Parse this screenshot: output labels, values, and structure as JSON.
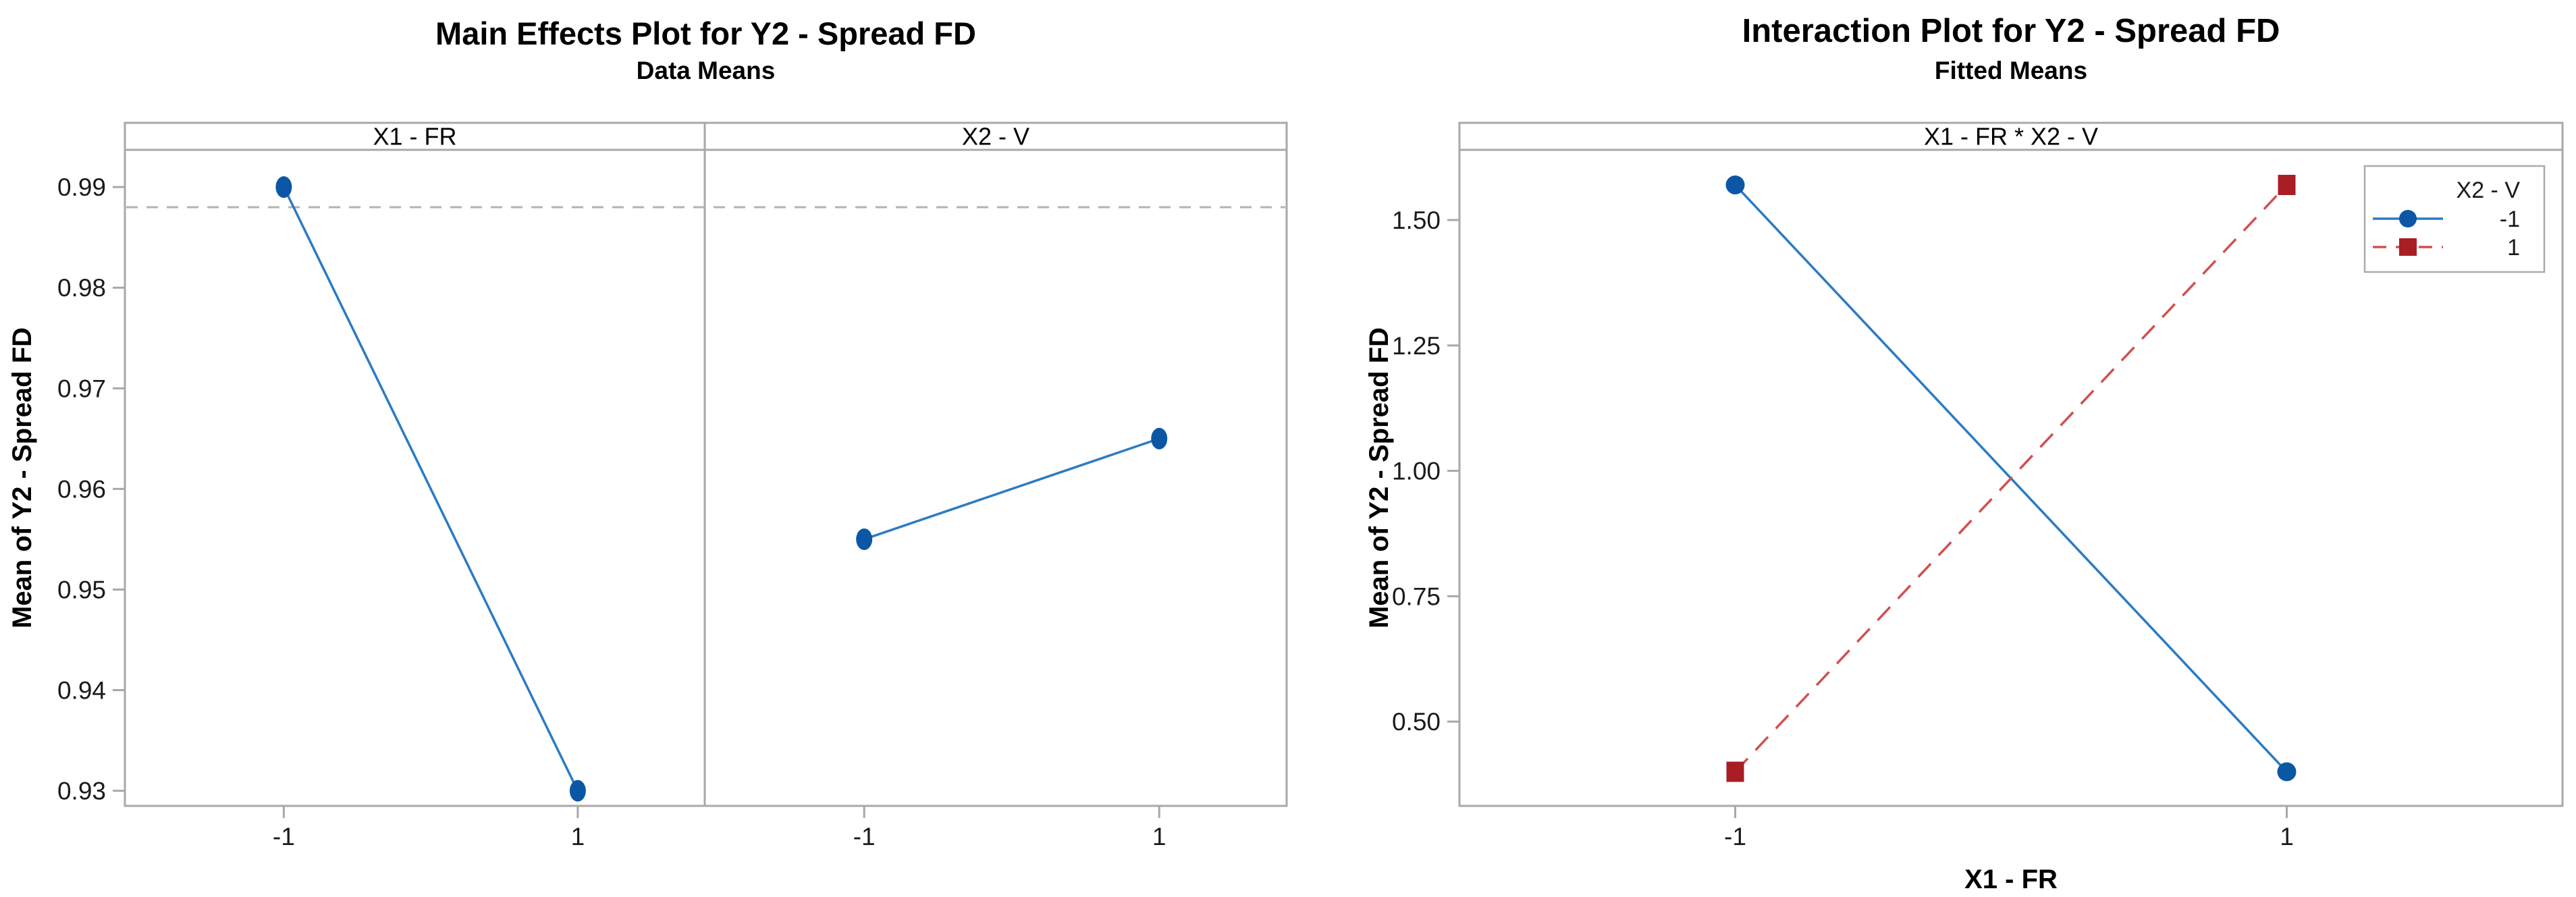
{
  "page": {
    "background": "#ffffff"
  },
  "charts": [
    {
      "title": "Main Effects Plot for Y2 - Spread FD",
      "subtitle": "Data Means",
      "ylabel": "Mean of Y2 - Spread FD"
    },
    {
      "title": "Interaction Plot for Y2 - Spread FD",
      "subtitle": "Fitted Means",
      "ylabel": "Mean of Y2 - Spread FD",
      "xlabel": "X1 - FR"
    }
  ],
  "chart_data": [
    {
      "type": "line",
      "title": "Main Effects Plot for Y2 - Spread FD",
      "subtitle": "Data Means",
      "ylabel": "Mean of Y2 - Spread FD",
      "ylim": [
        0.9285,
        0.9937
      ],
      "ytick_values": [
        0.93,
        0.94,
        0.95,
        0.96,
        0.97,
        0.98,
        0.99
      ],
      "ytick_labels": [
        "0.93",
        "0.94",
        "0.95",
        "0.96",
        "0.97",
        "0.98",
        "0.99"
      ],
      "x_categories": [
        "-1",
        "1"
      ],
      "reference_line": 0.988,
      "grid": false,
      "legend": null,
      "panels": [
        {
          "label": "X1 - FR",
          "values": [
            0.99,
            0.93
          ]
        },
        {
          "label": "X2 - V",
          "values": [
            0.955,
            0.965
          ]
        }
      ],
      "series_style": {
        "line_color": "#2b7bc2",
        "marker_color": "#0b57a5",
        "marker": "circle",
        "line_style": "solid"
      },
      "reference_line_color": "#b3b3b3",
      "frame_color": "#a8a8a8"
    },
    {
      "type": "line",
      "title": "Interaction Plot for Y2 - Spread FD",
      "subtitle": "Fitted Means",
      "panel_label": "X1 - FR * X2 - V",
      "xlabel": "X1 - FR",
      "ylabel": "Mean of Y2 - Spread FD",
      "ylim": [
        0.332,
        1.64
      ],
      "ytick_values": [
        0.5,
        0.75,
        1.0,
        1.25,
        1.5
      ],
      "ytick_labels": [
        "0.50",
        "0.75",
        "1.00",
        "1.25",
        "1.50"
      ],
      "x_categories": [
        "-1",
        "1"
      ],
      "grid": false,
      "legend": {
        "title": "X2 - V",
        "position": "top-right",
        "entries": [
          "-1",
          "1"
        ]
      },
      "series": [
        {
          "name": "-1",
          "values": [
            1.57,
            0.4
          ],
          "line_color": "#2b7bc2",
          "marker_color": "#0b57a5",
          "marker": "circle",
          "line_style": "solid"
        },
        {
          "name": "1",
          "values": [
            0.4,
            1.57
          ],
          "line_color": "#d05050",
          "marker_color": "#a81e24",
          "marker": "square",
          "line_style": "dashed"
        }
      ],
      "frame_color": "#a8a8a8"
    }
  ],
  "text_colors": {
    "tick_label": "#1a1a1a",
    "panel_header": "#000000",
    "axis_label": "#000000"
  }
}
